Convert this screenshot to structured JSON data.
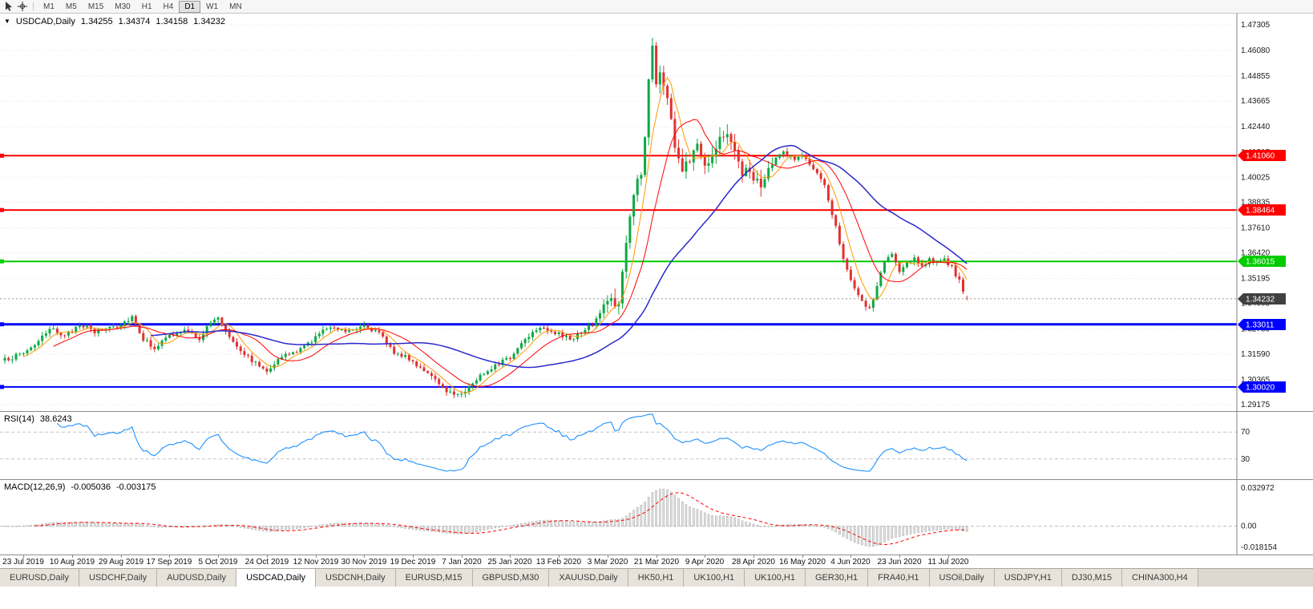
{
  "toolbar": {
    "timeframes": [
      "M1",
      "M5",
      "M15",
      "M30",
      "H1",
      "H4",
      "D1",
      "W1",
      "MN"
    ],
    "active_timeframe": "D1"
  },
  "chart": {
    "symbol_line": {
      "symbol": "USDCAD,Daily",
      "open": "1.34255",
      "high": "1.34374",
      "low": "1.34158",
      "close": "1.34232"
    },
    "price_axis": {
      "labels": [
        "1.47305",
        "1.46080",
        "1.44855",
        "1.43665",
        "1.42440",
        "1.41215",
        "1.40025",
        "1.38835",
        "1.37610",
        "1.36420",
        "1.35195",
        "1.34005",
        "1.32780",
        "1.31590",
        "1.30365",
        "1.29175"
      ]
    },
    "hlines": [
      {
        "price": 1.4106,
        "label": "1.41060",
        "color": "#FF0000",
        "width": 2
      },
      {
        "price": 1.38464,
        "label": "1.38464",
        "color": "#FF0000",
        "width": 2
      },
      {
        "price": 1.36015,
        "label": "1.36015",
        "color": "#00CC00",
        "width": 2
      },
      {
        "price": 1.33011,
        "label": "1.33011",
        "color": "#0000FF",
        "width": 3
      },
      {
        "price": 1.3002,
        "label": "1.30020",
        "color": "#0000FF",
        "width": 2
      }
    ],
    "current_price": {
      "value": 1.34232,
      "label": "1.34232",
      "badge_color": "#404040"
    }
  },
  "rsi": {
    "name": "RSI(14)",
    "value": "38.6243",
    "levels": [
      70,
      30
    ],
    "axis_labels": [
      "70",
      "30"
    ],
    "color": "#1E90FF"
  },
  "macd": {
    "name": "MACD(12,26,9)",
    "value_macd": "-0.005036",
    "value_signal": "-0.003175",
    "axis_labels": [
      "0.032972",
      "0.00",
      "-0.018154"
    ],
    "signal_color": "#FF0000",
    "histogram_fill": "#e2e2e2",
    "histogram_stroke": "#b0b0b0"
  },
  "tabs": {
    "items": [
      {
        "label": "EURUSD,Daily",
        "active": false
      },
      {
        "label": "USDCHF,Daily",
        "active": false
      },
      {
        "label": "AUDUSD,Daily",
        "active": false
      },
      {
        "label": "USDCAD,Daily",
        "active": true
      },
      {
        "label": "USDCNH,Daily",
        "active": false
      },
      {
        "label": "EURUSD,M15",
        "active": false
      },
      {
        "label": "GBPUSD,M30",
        "active": false
      },
      {
        "label": "XAUUSD,Daily",
        "active": false
      },
      {
        "label": "HK50,H1",
        "active": false
      },
      {
        "label": "UK100,H1",
        "active": false
      },
      {
        "label": "UK100,H1",
        "active": false
      },
      {
        "label": "GER30,H1",
        "active": false
      },
      {
        "label": "FRA40,H1",
        "active": false
      },
      {
        "label": "USOil,Daily",
        "active": false
      },
      {
        "label": "USDJPY,H1",
        "active": false
      },
      {
        "label": "DJ30,M15",
        "active": false
      },
      {
        "label": "CHINA300,H4",
        "active": false
      }
    ]
  },
  "chart_data": {
    "type": "candlestick",
    "title": "USDCAD,Daily",
    "candle_count": 258,
    "first_tick_index": 5,
    "tick_step": 13,
    "date_ticks": [
      "23 Jul 2019",
      "10 Aug 2019",
      "29 Aug 2019",
      "17 Sep 2019",
      "5 Oct 2019",
      "24 Oct 2019",
      "12 Nov 2019",
      "30 Nov 2019",
      "19 Dec 2019",
      "7 Jan 2020",
      "25 Jan 2020",
      "13 Feb 2020",
      "3 Mar 2020",
      "21 Mar 2020",
      "9 Apr 2020",
      "28 Apr 2020",
      "16 May 2020",
      "4 Jun 2020",
      "23 Jun 2020",
      "11 Jul 2020"
    ],
    "y_axis_range": [
      1.28792,
      1.47841
    ],
    "candle_up_color": "#0CA944",
    "candle_down_color": "#E03232",
    "close_waypoints": [
      [
        0,
        1.313
      ],
      [
        5,
        1.3165
      ],
      [
        9,
        1.322
      ],
      [
        13,
        1.3285
      ],
      [
        16,
        1.324
      ],
      [
        20,
        1.3305
      ],
      [
        24,
        1.3262
      ],
      [
        28,
        1.329
      ],
      [
        31,
        1.33
      ],
      [
        34,
        1.334
      ],
      [
        37,
        1.323
      ],
      [
        40,
        1.319
      ],
      [
        44,
        1.3245
      ],
      [
        48,
        1.327
      ],
      [
        52,
        1.3235
      ],
      [
        55,
        1.331
      ],
      [
        57,
        1.333
      ],
      [
        60,
        1.3245
      ],
      [
        64,
        1.316
      ],
      [
        68,
        1.31
      ],
      [
        70,
        1.3085
      ],
      [
        74,
        1.3145
      ],
      [
        79,
        1.318
      ],
      [
        83,
        1.324
      ],
      [
        87,
        1.3295
      ],
      [
        91,
        1.327
      ],
      [
        96,
        1.33
      ],
      [
        100,
        1.3255
      ],
      [
        104,
        1.317
      ],
      [
        108,
        1.3135
      ],
      [
        112,
        1.3085
      ],
      [
        116,
        1.301
      ],
      [
        120,
        1.2965
      ],
      [
        123,
        1.2985
      ],
      [
        127,
        1.3055
      ],
      [
        131,
        1.311
      ],
      [
        135,
        1.314
      ],
      [
        139,
        1.3235
      ],
      [
        143,
        1.3295
      ],
      [
        147,
        1.326
      ],
      [
        151,
        1.323
      ],
      [
        155,
        1.327
      ],
      [
        158,
        1.332
      ],
      [
        160,
        1.3395
      ],
      [
        162,
        1.3425
      ],
      [
        164,
        1.339
      ],
      [
        166,
        1.369
      ],
      [
        168,
        1.3925
      ],
      [
        170,
        1.4025
      ],
      [
        171,
        1.418
      ],
      [
        172,
        1.449
      ],
      [
        173,
        1.463
      ],
      [
        174,
        1.4445
      ],
      [
        175,
        1.452
      ],
      [
        177,
        1.438
      ],
      [
        179,
        1.416
      ],
      [
        181,
        1.403
      ],
      [
        183,
        1.409
      ],
      [
        185,
        1.419
      ],
      [
        187,
        1.406
      ],
      [
        189,
        1.4125
      ],
      [
        191,
        1.418
      ],
      [
        193,
        1.423
      ],
      [
        195,
        1.412
      ],
      [
        197,
        1.403
      ],
      [
        200,
        1.4015
      ],
      [
        202,
        1.3945
      ],
      [
        205,
        1.407
      ],
      [
        208,
        1.4125
      ],
      [
        211,
        1.409
      ],
      [
        213,
        1.4105
      ],
      [
        216,
        1.4045
      ],
      [
        219,
        1.3955
      ],
      [
        222,
        1.377
      ],
      [
        224,
        1.362
      ],
      [
        226,
        1.3505
      ],
      [
        228,
        1.343
      ],
      [
        231,
        1.337
      ],
      [
        233,
        1.348
      ],
      [
        235,
        1.3605
      ],
      [
        237,
        1.3635
      ],
      [
        239,
        1.355
      ],
      [
        241,
        1.359
      ],
      [
        243,
        1.3625
      ],
      [
        245,
        1.3575
      ],
      [
        247,
        1.3615
      ],
      [
        249,
        1.359
      ],
      [
        251,
        1.3605
      ],
      [
        253,
        1.3575
      ],
      [
        255,
        1.3505
      ],
      [
        256,
        1.3455
      ],
      [
        257,
        1.34232
      ]
    ],
    "spike": {
      "index": 173,
      "high": 1.4669
    },
    "last_candle": {
      "open": 1.34255,
      "high": 1.34374,
      "low": 1.34158,
      "close": 1.34232
    },
    "moving_averages": [
      {
        "period": 6,
        "color": "#FF9900",
        "width": 1
      },
      {
        "period": 14,
        "color": "#FF0000",
        "width": 1
      },
      {
        "period": 40,
        "color": "#2929CC",
        "width": 1.5
      }
    ],
    "indicators": [
      {
        "type": "RSI",
        "period": 14,
        "current": 38.6243,
        "levels": [
          70,
          30
        ]
      },
      {
        "type": "MACD",
        "fast": 12,
        "slow": 26,
        "signal": 9,
        "current_macd": -0.005036,
        "current_signal": -0.003175,
        "scale_max": 0.032972,
        "scale_min": -0.018154
      }
    ]
  }
}
